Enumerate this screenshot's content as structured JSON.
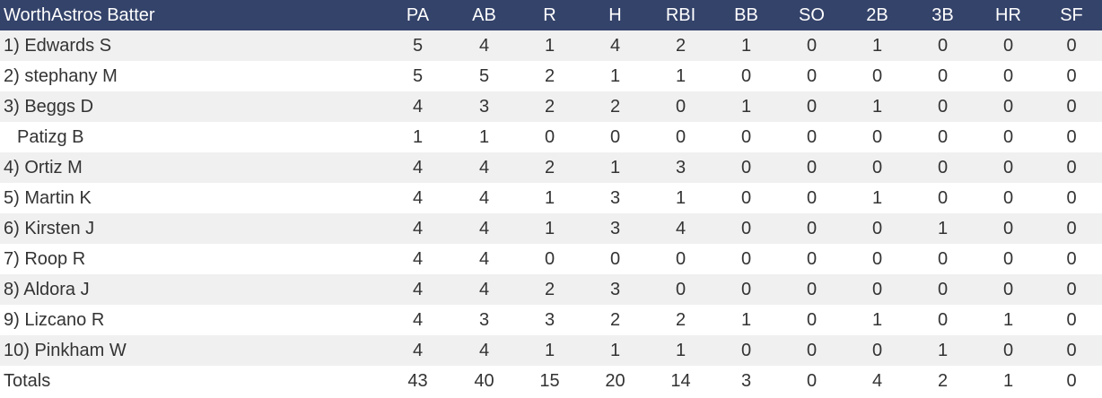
{
  "table": {
    "title": "WorthAstros Batter",
    "columns": [
      "PA",
      "AB",
      "R",
      "H",
      "RBI",
      "BB",
      "SO",
      "2B",
      "3B",
      "HR",
      "SF"
    ],
    "rows": [
      {
        "name": "1) Edwards S",
        "sub": false,
        "stats": [
          "5",
          "4",
          "1",
          "4",
          "2",
          "1",
          "0",
          "1",
          "0",
          "0",
          "0"
        ]
      },
      {
        "name": "2) stephany M",
        "sub": false,
        "stats": [
          "5",
          "5",
          "2",
          "1",
          "1",
          "0",
          "0",
          "0",
          "0",
          "0",
          "0"
        ]
      },
      {
        "name": "3) Beggs D",
        "sub": false,
        "stats": [
          "4",
          "3",
          "2",
          "2",
          "0",
          "1",
          "0",
          "1",
          "0",
          "0",
          "0"
        ]
      },
      {
        "name": "Patizg B",
        "sub": true,
        "stats": [
          "1",
          "1",
          "0",
          "0",
          "0",
          "0",
          "0",
          "0",
          "0",
          "0",
          "0"
        ]
      },
      {
        "name": "4) Ortiz M",
        "sub": false,
        "stats": [
          "4",
          "4",
          "2",
          "1",
          "3",
          "0",
          "0",
          "0",
          "0",
          "0",
          "0"
        ]
      },
      {
        "name": "5) Martin K",
        "sub": false,
        "stats": [
          "4",
          "4",
          "1",
          "3",
          "1",
          "0",
          "0",
          "1",
          "0",
          "0",
          "0"
        ]
      },
      {
        "name": "6) Kirsten J",
        "sub": false,
        "stats": [
          "4",
          "4",
          "1",
          "3",
          "4",
          "0",
          "0",
          "0",
          "1",
          "0",
          "0"
        ]
      },
      {
        "name": "7) Roop R",
        "sub": false,
        "stats": [
          "4",
          "4",
          "0",
          "0",
          "0",
          "0",
          "0",
          "0",
          "0",
          "0",
          "0"
        ]
      },
      {
        "name": "8) Aldora J",
        "sub": false,
        "stats": [
          "4",
          "4",
          "2",
          "3",
          "0",
          "0",
          "0",
          "0",
          "0",
          "0",
          "0"
        ]
      },
      {
        "name": "9) Lizcano R",
        "sub": false,
        "stats": [
          "4",
          "3",
          "3",
          "2",
          "2",
          "1",
          "0",
          "1",
          "0",
          "1",
          "0"
        ]
      },
      {
        "name": "10) Pinkham W",
        "sub": false,
        "stats": [
          "4",
          "4",
          "1",
          "1",
          "1",
          "0",
          "0",
          "0",
          "1",
          "0",
          "0"
        ]
      }
    ],
    "totals": {
      "label": "Totals",
      "stats": [
        "43",
        "40",
        "15",
        "20",
        "14",
        "3",
        "0",
        "4",
        "2",
        "1",
        "0"
      ]
    }
  },
  "colors": {
    "header_bg": "#34436a",
    "header_text": "#ffffff",
    "stripe": "#f0f0f0",
    "text": "#333333"
  }
}
